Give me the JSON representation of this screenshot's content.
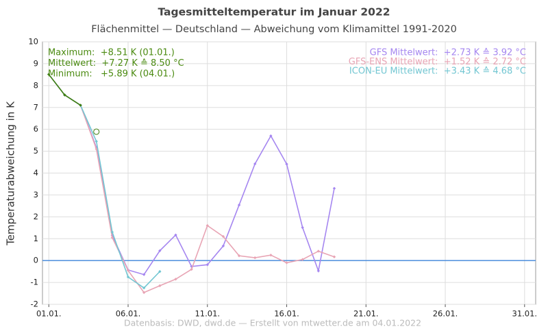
{
  "chart_data": {
    "type": "line",
    "title": "Tagesmitteltemperatur im Januar 2022",
    "subtitle": "Flächenmittel — Deutschland — Abweichung vom Klimamittel 1991-2020",
    "y_label": "Temperaturabweichung in K",
    "footer": "Datenbasis: DWD, dwd.de — Erstellt von mtwetter.de am 04.01.2022",
    "xlim": [
      0.6,
      31.7
    ],
    "ylim": [
      -2,
      10
    ],
    "xticks": [
      {
        "value": 1,
        "label": "01.01."
      },
      {
        "value": 6,
        "label": "06.01."
      },
      {
        "value": 11,
        "label": "11.01."
      },
      {
        "value": 16,
        "label": "16.01."
      },
      {
        "value": 21,
        "label": "21.01."
      },
      {
        "value": 26,
        "label": "26.01."
      },
      {
        "value": 31,
        "label": "31.01."
      }
    ],
    "yticks": [
      -2,
      -1,
      0,
      1,
      2,
      3,
      4,
      5,
      6,
      7,
      8,
      9,
      10
    ],
    "grid": true,
    "reference_line": {
      "value": 0,
      "color": "#4a8cdc"
    },
    "series": [
      {
        "color": "#a586f0",
        "x": [
          1,
          2,
          3,
          4,
          5,
          6,
          7,
          8,
          9,
          10,
          11,
          12,
          13,
          14,
          15,
          16,
          17,
          18,
          19
        ],
        "values": [
          8.51,
          7.57,
          7.1,
          5.17,
          1.15,
          -0.43,
          -0.64,
          0.45,
          1.17,
          -0.27,
          -0.19,
          0.67,
          2.54,
          4.42,
          5.7,
          4.41,
          1.51,
          -0.47,
          3.3
        ]
      },
      {
        "color": "#e8a4b4",
        "x": [
          1,
          2,
          3,
          4,
          5,
          6,
          7,
          8,
          9,
          10,
          11,
          12,
          13,
          14,
          15,
          16,
          17,
          18,
          19
        ],
        "values": [
          8.51,
          7.57,
          7.1,
          5.1,
          1.05,
          -0.45,
          -1.46,
          -1.15,
          -0.85,
          -0.4,
          1.6,
          1.1,
          0.22,
          0.13,
          0.25,
          -0.1,
          0.05,
          0.43,
          0.17
        ]
      },
      {
        "color": "#72c6d2",
        "x": [
          1,
          2,
          3,
          4,
          5,
          6,
          7,
          8
        ],
        "values": [
          8.51,
          7.57,
          7.1,
          5.45,
          1.3,
          -0.75,
          -1.25,
          -0.5
        ]
      },
      {
        "color": "#3f7f10",
        "x": [
          1,
          2,
          3
        ],
        "values": [
          8.51,
          7.57,
          7.1
        ]
      }
    ],
    "current_point": {
      "x": 4,
      "y": 5.89,
      "color": "#3f7f10"
    },
    "annotations_left": {
      "color": "#4a8a10",
      "lines": [
        "Maximum:  +8.51 K (01.01.)",
        "Mittelwert:  +7.27 K ≙ 8.50 °C",
        "Minimum:   +5.89 K (04.01.)"
      ]
    },
    "annotations_right": [
      {
        "text": "GFS Mittelwert:  +2.73 K ≙ 3.92 °C",
        "color": "#a586f0"
      },
      {
        "text": "GFS-ENS Mittelwert:  +1.52 K ≙ 2.72 °C",
        "color": "#e8a4b4"
      },
      {
        "text": "ICON-EU Mittelwert:  +3.43 K ≙ 4.68 °C",
        "color": "#72c6d2"
      }
    ]
  }
}
